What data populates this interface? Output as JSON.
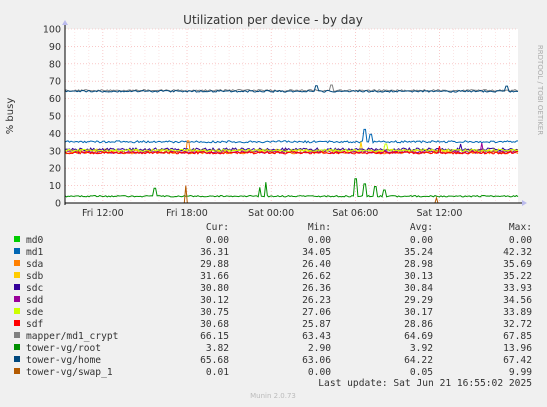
{
  "chart_data": {
    "type": "line",
    "title": "Utilization per device - by day",
    "ylabel": "% busy",
    "ylim": [
      0,
      100
    ],
    "yticks": [
      0,
      10,
      20,
      30,
      40,
      50,
      60,
      70,
      80,
      90,
      100
    ],
    "xticks": [
      "Fri 12:00",
      "Fri 18:00",
      "Sat 00:00",
      "Sat 06:00",
      "Sat 12:00"
    ],
    "x_range_hours": [
      -2.7,
      29.6
    ],
    "xtick_hours": [
      0,
      6,
      12,
      18,
      24
    ],
    "grid": true,
    "legend_headers": [
      "Cur:",
      "Min:",
      "Avg:",
      "Max:"
    ],
    "series": [
      {
        "name": "md0",
        "color": "#00cc00",
        "cur": "0.00",
        "min": "0.00",
        "avg": "0.00",
        "max": "0.00",
        "base": 0,
        "noise": 0,
        "spikes": []
      },
      {
        "name": "md1",
        "color": "#0066b3",
        "cur": "36.31",
        "min": "34.05",
        "avg": "35.24",
        "max": "42.32",
        "base": 35.2,
        "noise": 0.6,
        "spikes": [
          [
            18.7,
            42.3
          ],
          [
            19.1,
            39.5
          ]
        ]
      },
      {
        "name": "sda",
        "color": "#ff8000",
        "cur": "29.88",
        "min": "26.40",
        "avg": "28.98",
        "max": "35.69",
        "base": 29.0,
        "noise": 0.7,
        "spikes": [
          [
            6.1,
            35.7
          ]
        ]
      },
      {
        "name": "sdb",
        "color": "#ffcc00",
        "cur": "31.66",
        "min": "26.62",
        "avg": "30.13",
        "max": "35.22",
        "base": 30.1,
        "noise": 0.9,
        "spikes": [
          [
            18.4,
            35.2
          ]
        ]
      },
      {
        "name": "sdc",
        "color": "#330099",
        "cur": "30.80",
        "min": "26.36",
        "avg": "30.84",
        "max": "33.93",
        "base": 30.8,
        "noise": 0.8,
        "spikes": [
          [
            25.5,
            33.9
          ]
        ]
      },
      {
        "name": "sdd",
        "color": "#990099",
        "cur": "30.12",
        "min": "26.23",
        "avg": "29.29",
        "max": "34.56",
        "base": 29.3,
        "noise": 0.8,
        "spikes": [
          [
            27.0,
            34.5
          ]
        ]
      },
      {
        "name": "sde",
        "color": "#ccff00",
        "cur": "30.75",
        "min": "27.06",
        "avg": "30.17",
        "max": "33.89",
        "base": 30.2,
        "noise": 0.7,
        "spikes": [
          [
            20.2,
            33.9
          ]
        ]
      },
      {
        "name": "sdf",
        "color": "#ff0000",
        "cur": "30.68",
        "min": "25.87",
        "avg": "28.86",
        "max": "32.72",
        "base": 28.9,
        "noise": 0.7,
        "spikes": [
          [
            24.0,
            32.7
          ]
        ]
      },
      {
        "name": "mapper/md1_crypt",
        "color": "#808080",
        "cur": "66.15",
        "min": "63.43",
        "avg": "64.69",
        "max": "67.85",
        "base": 64.7,
        "noise": 0.5,
        "spikes": [
          [
            16.3,
            67.8
          ]
        ]
      },
      {
        "name": "tower-vg/root",
        "color": "#008f00",
        "cur": "3.82",
        "min": "2.90",
        "avg": "3.92",
        "max": "13.96",
        "base": 3.9,
        "noise": 0.4,
        "spikes": [
          [
            3.7,
            8.5
          ],
          [
            11.2,
            9.0
          ],
          [
            11.6,
            12.0
          ],
          [
            18.0,
            13.9
          ],
          [
            18.7,
            11.0
          ],
          [
            19.4,
            9.5
          ],
          [
            20.1,
            7.5
          ]
        ]
      },
      {
        "name": "tower-vg/home",
        "color": "#00487d",
        "cur": "65.68",
        "min": "63.06",
        "avg": "64.22",
        "max": "67.42",
        "base": 64.2,
        "noise": 0.5,
        "spikes": [
          [
            15.2,
            67.4
          ],
          [
            28.8,
            67.2
          ]
        ]
      },
      {
        "name": "tower-vg/swap_1",
        "color": "#b35a00",
        "cur": "0.01",
        "min": "0.00",
        "avg": "0.05",
        "max": "9.99",
        "base": 0,
        "noise": 0,
        "spikes": [
          [
            5.9,
            9.99
          ],
          [
            23.8,
            3.0
          ]
        ]
      }
    ]
  },
  "watermark": "RRDTOOL / TOBI OETIKER",
  "footer": "Last update: Sat Jun 21 16:55:02 2025",
  "munin_version": "Munin 2.0.73"
}
